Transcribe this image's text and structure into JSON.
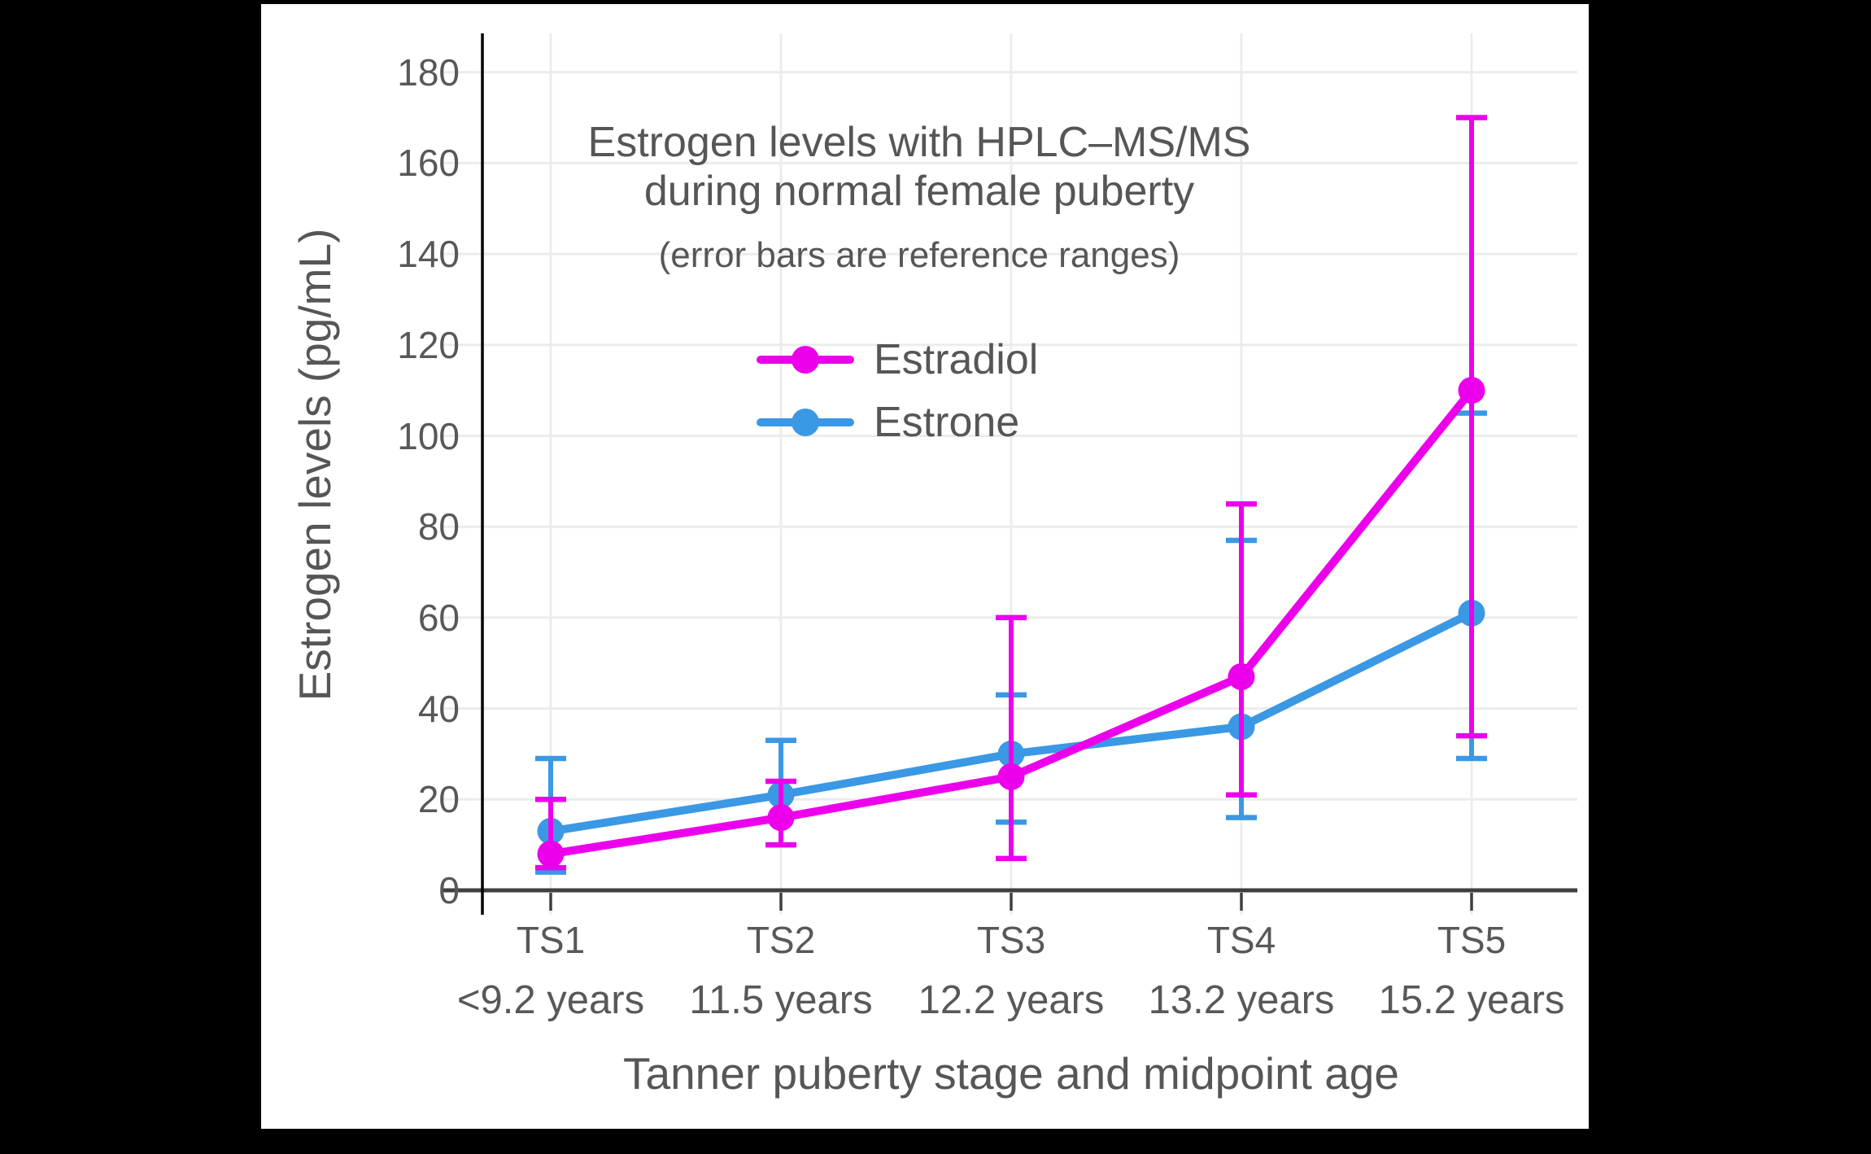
{
  "page": {
    "background": "#000000",
    "card_background": "#ffffff"
  },
  "chart_data": {
    "type": "line",
    "title_line1": "Estrogen levels with HPLC–MS/MS",
    "title_line2": "during normal female puberty",
    "subtitle": "(error bars are reference ranges)",
    "ylabel": "Estrogen levels (pg/mL)",
    "xlabel": "Tanner puberty stage and midpoint age",
    "categories": [
      "TS1",
      "TS2",
      "TS3",
      "TS4",
      "TS5"
    ],
    "category_ages": [
      "<9.2 years",
      "11.5 years",
      "12.2 years",
      "13.2 years",
      "15.2 years"
    ],
    "y_ticks": [
      0,
      20,
      40,
      60,
      80,
      100,
      120,
      140,
      160,
      180
    ],
    "ylim": [
      0,
      188
    ],
    "grid": true,
    "error_bar_meaning": "reference ranges",
    "series": [
      {
        "name": "Estrone",
        "color": "#3B98E4",
        "values": [
          13,
          21,
          30,
          36,
          61
        ],
        "error_low": [
          4,
          10,
          15,
          16,
          29
        ],
        "error_high": [
          29,
          33,
          43,
          77,
          105
        ]
      },
      {
        "name": "Estradiol",
        "color": "#EC00EC",
        "values": [
          8,
          16,
          25,
          47,
          110
        ],
        "error_low": [
          5,
          10,
          7,
          21,
          34
        ],
        "error_high": [
          20,
          24,
          60,
          85,
          170
        ]
      }
    ],
    "legend_items": [
      {
        "label": "Estradiol",
        "color": "#EC00EC"
      },
      {
        "label": "Estrone",
        "color": "#3B98E4"
      }
    ],
    "legend_position": "upper-center-inside",
    "colors": {
      "grid": "#ECECEC",
      "x_axis": "#3F3F3F",
      "y_axis": "#000000",
      "text": "#565658",
      "tick_text": "#58585a"
    }
  }
}
